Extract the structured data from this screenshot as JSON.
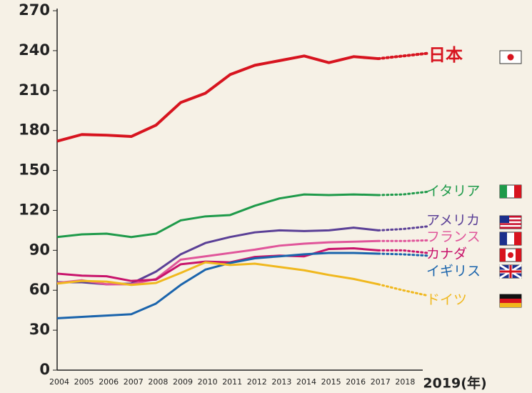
{
  "chart_data": {
    "type": "line",
    "x": [
      2004,
      2005,
      2006,
      2007,
      2008,
      2009,
      2010,
      2011,
      2012,
      2013,
      2014,
      2015,
      2016,
      2017,
      2018,
      2019
    ],
    "xlim": [
      2004,
      2019
    ],
    "xticks": [
      2004,
      2005,
      2006,
      2007,
      2008,
      2009,
      2010,
      2011,
      2012,
      2013,
      2014,
      2015,
      2016,
      2017,
      2018,
      {
        "value": 2019,
        "label": "2019(年)"
      }
    ],
    "ylim": [
      0,
      270
    ],
    "yticks": [
      0,
      30,
      60,
      90,
      120,
      150,
      180,
      210,
      240,
      270
    ],
    "dotted_from": 2017,
    "grid": false,
    "series": [
      {
        "name": "日本",
        "color": "#d7141f",
        "values": [
          172,
          177,
          176.5,
          175.5,
          184,
          201,
          208,
          222,
          229,
          232.5,
          236,
          231,
          235.5,
          234,
          236,
          238
        ]
      },
      {
        "name": "イタリア",
        "color": "#1e9a4a",
        "values": [
          100,
          102,
          102.5,
          100,
          102.5,
          112.5,
          115.5,
          116.5,
          123.5,
          129,
          132,
          131.5,
          132,
          131.5,
          132,
          134
        ]
      },
      {
        "name": "アメリカ",
        "color": "#5a3f96",
        "values": [
          66,
          66,
          64.5,
          65,
          74,
          87,
          95.5,
          100,
          103.5,
          105,
          104.5,
          105,
          107,
          105,
          106,
          108
        ]
      },
      {
        "name": "フランス",
        "color": "#e0559a",
        "values": [
          65.5,
          67.5,
          64.5,
          64.5,
          68.5,
          83,
          85.5,
          88,
          90.5,
          93.5,
          95,
          96,
          96.5,
          97,
          97,
          97.5
        ]
      },
      {
        "name": "カナダ",
        "color": "#c8136b",
        "values": [
          72.5,
          71,
          70.5,
          67,
          68,
          79.5,
          81.5,
          81,
          85,
          86,
          85.5,
          91,
          91.5,
          90,
          90,
          88
        ]
      },
      {
        "name": "イギリス",
        "color": "#1a64ac",
        "values": [
          39,
          40,
          41,
          42,
          50,
          64,
          75.5,
          80.5,
          84,
          85.5,
          87,
          88,
          88,
          87.5,
          87,
          86
        ]
      },
      {
        "name": "ドイツ",
        "color": "#f0b81e",
        "values": [
          65,
          67,
          66.5,
          64,
          65.5,
          73,
          81,
          79,
          80,
          77.5,
          75,
          71.5,
          68.5,
          64.5,
          60,
          56
        ]
      }
    ]
  }
}
